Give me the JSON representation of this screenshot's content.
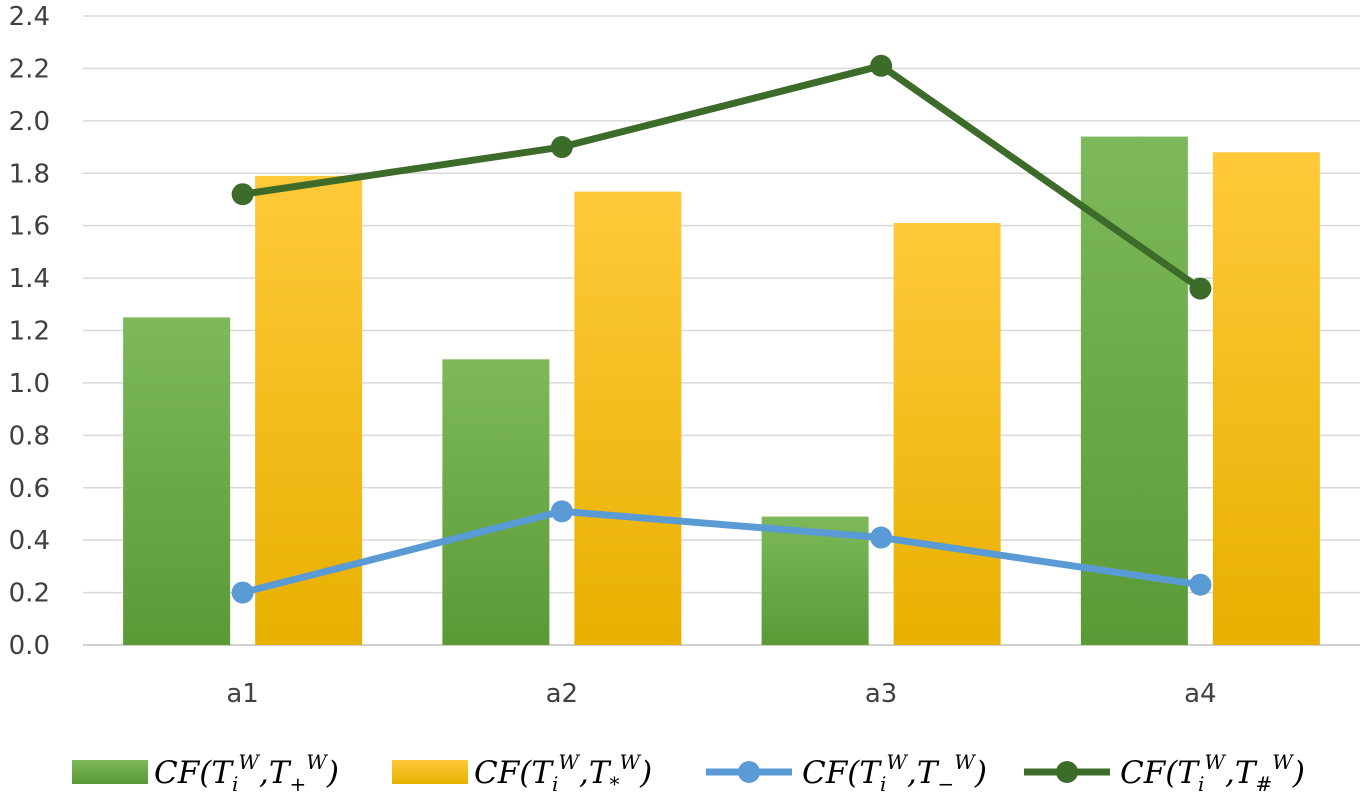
{
  "chart_data": {
    "type": "bar",
    "categories": [
      "a1",
      "a2",
      "a3",
      "a4"
    ],
    "ylim": [
      0,
      2.4
    ],
    "yticks": [
      "0.0",
      "0.2",
      "0.4",
      "0.6",
      "0.8",
      "1.0",
      "1.2",
      "1.4",
      "1.6",
      "1.8",
      "2.0",
      "2.2",
      "2.4"
    ],
    "grid": true,
    "legend_position": "bottom",
    "series": [
      {
        "name": "CF(T_i^W, T_+^W)",
        "kind": "bar",
        "color": "#70AD47",
        "values": [
          1.25,
          1.09,
          0.49,
          1.94
        ]
      },
      {
        "name": "CF(T_i^W, T_*^W)",
        "kind": "bar",
        "color": "#FFC000",
        "values": [
          1.79,
          1.73,
          1.61,
          1.88
        ]
      },
      {
        "name": "CF(T_i^W, T_-^W)",
        "kind": "line",
        "color": "#5B9BD5",
        "values": [
          0.2,
          0.51,
          0.41,
          0.23
        ]
      },
      {
        "name": "CF(T_i^W, T_#^W)",
        "kind": "line",
        "color": "#3D6B2A",
        "values": [
          1.72,
          1.9,
          2.21,
          1.36
        ]
      }
    ]
  },
  "legend": [
    {
      "base": "CF(T",
      "sub1": "i",
      "sup1": "W",
      "mid": ",T",
      "sub2": "+",
      "sup2": "W",
      "end": ")"
    },
    {
      "base": "CF(T",
      "sub1": "i",
      "sup1": "W",
      "mid": ",T",
      "sub2": "*",
      "sup2": "W",
      "end": ")"
    },
    {
      "base": "CF(T",
      "sub1": "i",
      "sup1": "W",
      "mid": ",T",
      "sub2": "−",
      "sup2": "W",
      "end": ")"
    },
    {
      "base": "CF(T",
      "sub1": "i",
      "sup1": "W",
      "mid": ",T",
      "sub2": "#",
      "sup2": "W",
      "end": ")"
    }
  ]
}
